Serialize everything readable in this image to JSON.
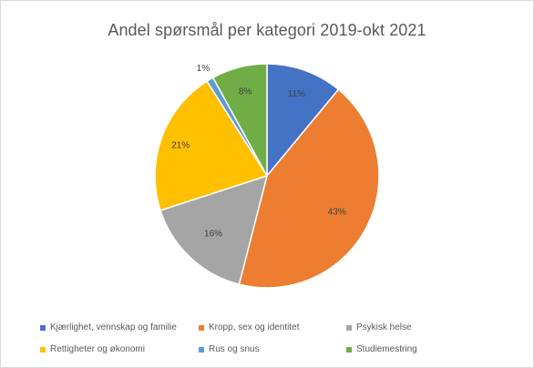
{
  "chart_data": {
    "type": "pie",
    "title": "Andel spørsmål per kategori 2019-okt 2021",
    "categories": [
      "Kjærlighet, vennskap og familie",
      "Kropp, sex og identitet",
      "Psykisk helse",
      "Rettigheter og økonomi",
      "Rus og snus",
      "Studiemestring"
    ],
    "values": [
      11,
      43,
      16,
      21,
      1,
      8
    ],
    "data_labels": [
      "11%",
      "43%",
      "16%",
      "21%",
      "1%",
      "8%"
    ],
    "colors": [
      "#4472c4",
      "#ed7d31",
      "#a5a5a5",
      "#ffc000",
      "#5b9bd5",
      "#70ad47"
    ],
    "legend_position": "bottom",
    "start_angle": "top, clockwise"
  }
}
